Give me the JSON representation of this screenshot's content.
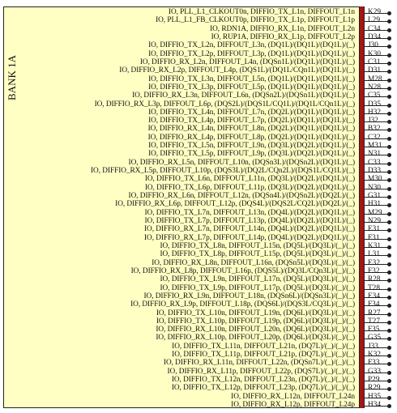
{
  "bank": {
    "title": "BANK 1A",
    "pins": [
      {
        "label": "IO, PLL_L1_CLKOUT0n, DIFFIO_TX_L1n, DIFFOUT_L1n",
        "number": "K29"
      },
      {
        "label": "IO, PLL_L1_FB_CLKOUT0p, DIFFIO_TX_L1p, DIFFOUT_L1p",
        "number": "L29"
      },
      {
        "label": "IO, RDN1A, DIFFIO_RX_L1n, DIFFOUT_L2n",
        "number": "C34"
      },
      {
        "label": "IO, RUP1A, DIFFIO_RX_L1p, DIFFOUT_L2p",
        "number": "D34"
      },
      {
        "label": "IO, DIFFIO_TX_L2n, DIFFOUT_L3n, (DQ1L)/(DQ1L)/(DQ1L)/(_)",
        "number": "J30"
      },
      {
        "label": "IO, DIFFIO_TX_L2p, DIFFOUT_L3p, (DQ1L)/(DQ1L)/(DQ1L)/(_)",
        "number": "K30"
      },
      {
        "label": "IO, DIFFIO_RX_L2n, DIFFOUT_L4n, (DQSn1L)/(DQ1L)/(DQ1L)/(_)",
        "number": "C31"
      },
      {
        "label": "IO, DIFFIO_RX_L2p, DIFFOUT_L4p, (DQS1L)/(DQ1L/CQn1L)/(DQ1L)/(_)",
        "number": "D31"
      },
      {
        "label": "IO, DIFFIO_TX_L3n, DIFFOUT_L5n, (DQ1L)/(DQ1L)/(DQ1L)/(_)",
        "number": "M28"
      },
      {
        "label": "IO, DIFFIO_TX_L3p, DIFFOUT_L5p, (DQ1L)/(DQ1L)/(DQ1L)/(_)",
        "number": "N28"
      },
      {
        "label": "IO, DIFFIO_RX_L3n, DIFFOUT_L6n, (DQSn2L)/(DQSn1L)/(DQ1L)/(_)",
        "number": "C35"
      },
      {
        "label": "IO, DIFFIO_RX_L3p, DIFFOUT_L6p, (DQS2L)/(DQS1L/CQ1L)/(DQ1L/CQn1L)/(_)",
        "number": "D35"
      },
      {
        "label": "IO, DIFFIO_TX_L4n, DIFFOUT_L7n, (DQ2L)/(DQ1L)/(DQ1L)/(_)",
        "number": "H32"
      },
      {
        "label": "IO, DIFFIO_TX_L4p, DIFFOUT_L7p, (DQ2L)/(DQ1L)/(DQ1L)/(_)",
        "number": "J32"
      },
      {
        "label": "IO, DIFFIO_RX_L4n, DIFFOUT_L8n, (DQ2L)/(DQ1L)/(DQ1L)/(_)",
        "number": "B32"
      },
      {
        "label": "IO, DIFFIO_RX_L4p, DIFFOUT_L8p, (DQ2L)/(DQ1L)/(DQ1L)/(_)",
        "number": "C32"
      },
      {
        "label": "IO, DIFFIO_TX_L5n, DIFFOUT_L9n, (DQ3L)/(DQ2L)/(DQ1L)/(_)",
        "number": "M31"
      },
      {
        "label": "IO, DIFFIO_TX_L5p, DIFFOUT_L9p, (DQ3L)/(DQ2L)/(DQ1L)/(_)",
        "number": "N31"
      },
      {
        "label": "IO, DIFFIO_RX_L5n, DIFFOUT_L10n, (DQSn3L)/(DQSn2L)/(DQ1L)/(_)",
        "number": "C33"
      },
      {
        "label": "IO, DIFFIO_RX_L5p, DIFFOUT_L10p, (DQS3L)/(DQ2L/CQn2L)/(DQS1L/CQ1L)/(_)",
        "number": "D33"
      },
      {
        "label": "IO, DIFFIO_TX_L6n, DIFFOUT_L11n, (DQ3L)/(DQ2L)/(DQ1L)/(_)",
        "number": "M30"
      },
      {
        "label": "IO, DIFFIO_TX_L6p, DIFFOUT_L11p, (DQ3L)/(DQ2L)/(DQ1L)/(_)",
        "number": "N30"
      },
      {
        "label": "IO, DIFFIO_RX_L6n, DIFFOUT_L12n, (DQSn4L)/(DQSn2L)/(DQ2L)/(_)",
        "number": "G31"
      },
      {
        "label": "IO, DIFFIO_RX_L6p, DIFFOUT_L12p, (DQS4L)/(DQS2L/CQ2L)/(DQ2L)/(_)",
        "number": "H31"
      },
      {
        "label": "IO, DIFFIO_TX_L7n, DIFFOUT_L13n, (DQ4L)/(DQ2L)/(DQ1L)/(_)",
        "number": "M29"
      },
      {
        "label": "IO, DIFFIO_TX_L7p, DIFFOUT_L13p, (DQ4L)/(DQ2L)/(DQ1L)/(_)",
        "number": "N29"
      },
      {
        "label": "IO, DIFFIO_RX_L7n, DIFFOUT_L14n, (DQ4L)/(DQ2L)/(DQ1L)/(_)",
        "number": "E31"
      },
      {
        "label": "IO, DIFFIO_RX_L7p, DIFFOUT_L14p, (DQ4L)/(DQ2L)/(DQ1L)/(_)",
        "number": "F31"
      },
      {
        "label": "IO, DIFFIO_TX_L8n, DIFFOUT_L15n, (DQ5L)/(DQ3L)/(_)/(_)",
        "number": "K31"
      },
      {
        "label": "IO, DIFFIO_TX_L8p, DIFFOUT_L15p, (DQ5L)/(DQ3L)/(_)/(_)",
        "number": "L31"
      },
      {
        "label": "IO, DIFFIO_RX_L8n, DIFFOUT_L16n, (DQSn5L)/(DQ3L)/(_)/(_)",
        "number": "E32"
      },
      {
        "label": "IO, DIFFIO_RX_L8p, DIFFOUT_L16p, (DQS5L)/(DQ3L/CQn3L)/(_)/(_)",
        "number": "F32"
      },
      {
        "label": "IO, DIFFIO_TX_L9n, DIFFOUT_L17n, (DQ5L)/(DQ3L)/(_)/(_)",
        "number": "R28"
      },
      {
        "label": "IO, DIFFIO_TX_L9p, DIFFOUT_L17p, (DQ5L)/(DQ3L)/(_)/(_)",
        "number": "T28"
      },
      {
        "label": "IO, DIFFIO_RX_L9n, DIFFOUT_L18n, (DQSn6L)/(DQSn3L)/(_)/(_)",
        "number": "E34"
      },
      {
        "label": "IO, DIFFIO_RX_L9p, DIFFOUT_L18p, (DQS6L)/(DQS3L/CQ3L)/(_)/(_)",
        "number": "F34"
      },
      {
        "label": "IO, DIFFIO_TX_L10n, DIFFOUT_L19n, (DQ6L)/(DQ3L)/(_)/(_)",
        "number": "R27"
      },
      {
        "label": "IO, DIFFIO_TX_L10p, DIFFOUT_L19p, (DQ6L)/(DQ3L)/(_)/(_)",
        "number": "T27"
      },
      {
        "label": "IO, DIFFIO_RX_L10n, DIFFOUT_L20n, (DQ6L)/(DQ3L)/(_)/(_)",
        "number": "F35"
      },
      {
        "label": "IO, DIFFIO_RX_L10p, DIFFOUT_L20p, (DQ6L)/(DQ3L)/(_)/(_)",
        "number": "G35"
      },
      {
        "label": "IO, DIFFIO_TX_L11n, DIFFOUT_L21n, (DQ7L)/(_)/(_)/(_)",
        "number": "J33"
      },
      {
        "label": "IO, DIFFIO_TX_L11p, DIFFOUT_L21p, (DQ7L)/(_)/(_)/(_)",
        "number": "K32"
      },
      {
        "label": "IO, DIFFIO_RX_L11n, DIFFOUT_L22n, (DQSn7L)/(_)/(_)/(_)",
        "number": "F33"
      },
      {
        "label": "IO, DIFFIO_RX_L11p, DIFFOUT_L22p, (DQS7L)/(_)/(_)/(_)",
        "number": "G33"
      },
      {
        "label": "IO, DIFFIO_TX_L12n, DIFFOUT_L23n, (DQ7L)/(_)/(_)/(_)",
        "number": "P29"
      },
      {
        "label": "IO, DIFFIO_TX_L12p, DIFFOUT_L23p, (DQ7L)/(_)/(_)/(_)",
        "number": "R29"
      },
      {
        "label": "IO, DIFFIO_RX_L12n, DIFFOUT_L24n",
        "number": "H35"
      },
      {
        "label": "IO, DIFFIO_RX_L12p, DIFFOUT_L24p",
        "number": "H34"
      }
    ]
  }
}
